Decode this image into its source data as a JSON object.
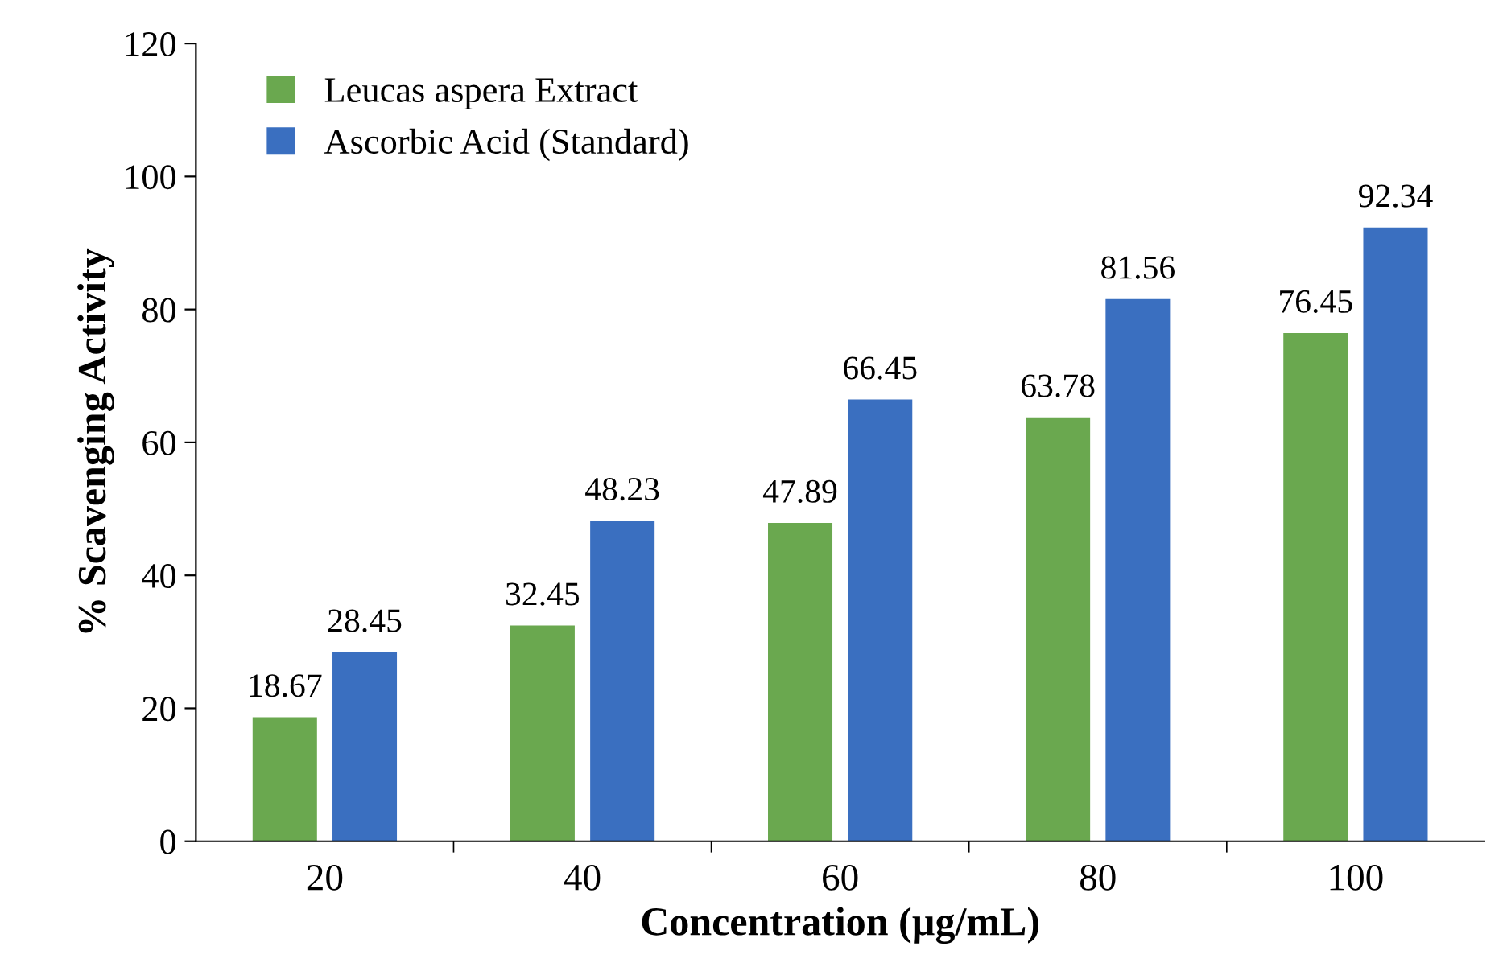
{
  "chart_data": {
    "type": "bar",
    "xlabel": "Concentration (µg/mL)",
    "ylabel": "% Scavenging Activity",
    "categories": [
      "20",
      "40",
      "60",
      "80",
      "100"
    ],
    "series": [
      {
        "name": "Leucas aspera Extract",
        "color": "#6aa84f",
        "values": [
          18.67,
          32.45,
          47.89,
          63.78,
          76.45
        ]
      },
      {
        "name": "Ascorbic Acid (Standard)",
        "color": "#3a6fc0",
        "values": [
          28.45,
          48.23,
          66.45,
          81.56,
          92.34
        ]
      }
    ],
    "ylim": [
      0,
      120
    ],
    "yticks": [
      0,
      20,
      40,
      60,
      80,
      100,
      120
    ],
    "grid": false,
    "legend": "top left",
    "data_labels": true
  }
}
